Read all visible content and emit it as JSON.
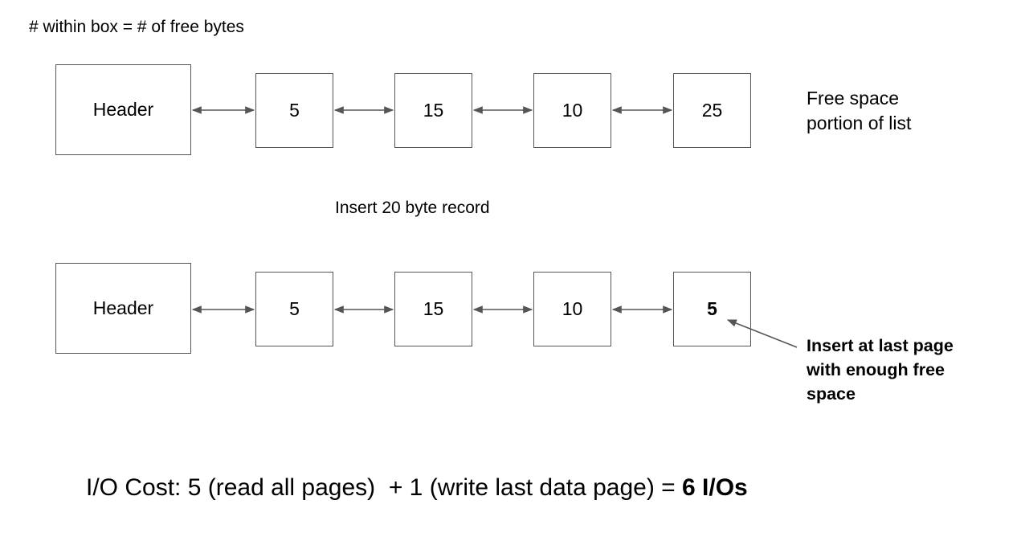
{
  "caption": "# within box = # of free bytes",
  "top_list": {
    "header_label": "Header",
    "pages": [
      "5",
      "15",
      "10",
      "25"
    ],
    "side_label_line1": "Free space",
    "side_label_line2": "portion of list"
  },
  "insert_title": "Insert 20 byte record",
  "bottom_list": {
    "header_label": "Header",
    "pages": [
      "5",
      "15",
      "10",
      "5"
    ],
    "annotation_line1": "Insert at last page",
    "annotation_line2": "with enough free",
    "annotation_line3": "space"
  },
  "cost": {
    "prefix": "I/O Cost: 5 (read all pages)  + 1 (write last data page) = ",
    "total": "6 I/Os"
  },
  "colors": {
    "line": "#555555",
    "text": "#000000"
  }
}
